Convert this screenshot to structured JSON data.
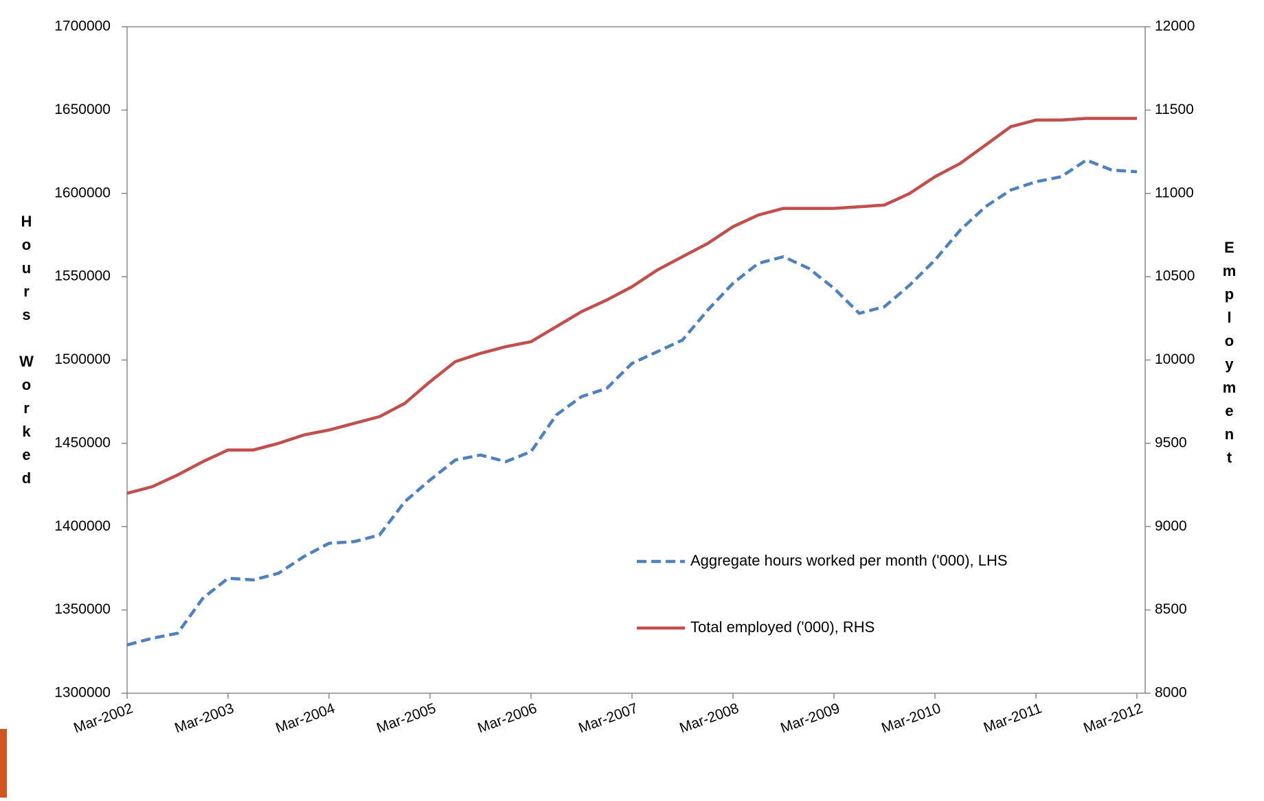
{
  "chart_data": {
    "type": "line",
    "y_label": "Hours Worked",
    "y2_label": "Employment",
    "categories": [
      "Mar-2002",
      null,
      null,
      null,
      "Mar-2003",
      null,
      null,
      null,
      "Mar-2004",
      null,
      null,
      null,
      "Mar-2005",
      null,
      null,
      null,
      "Mar-2006",
      null,
      null,
      null,
      "Mar-2007",
      null,
      null,
      null,
      "Mar-2008",
      null,
      null,
      null,
      "Mar-2009",
      null,
      null,
      null,
      "Mar-2010",
      null,
      null,
      null,
      "Mar-2011",
      null,
      null,
      null,
      "Mar-2012"
    ],
    "series": [
      {
        "name": "Aggregate hours worked per month  ('000), LHS",
        "color": "#4f81bd",
        "line_style": "dashed",
        "axis": "y",
        "values": [
          1329000,
          1333000,
          1336000,
          1357000,
          1369000,
          1368000,
          1372000,
          1382000,
          1390000,
          1391000,
          1395000,
          1415000,
          1428000,
          1440000,
          1443000,
          1439000,
          1445000,
          1467000,
          1478000,
          1483000,
          1498000,
          1505000,
          1512000,
          1530000,
          1546000,
          1558000,
          1562000,
          1555000,
          1543000,
          1528000,
          1532000,
          1545000,
          1560000,
          1578000,
          1592000,
          1602000,
          1607000,
          1610000,
          1620000,
          1614000,
          1613000
        ]
      },
      {
        "name": "Total employed  ('000), RHS",
        "color": "#c0504d",
        "line_style": "solid",
        "axis": "y2",
        "values": [
          9200,
          9240,
          9310,
          9390,
          9460,
          9460,
          9500,
          9550,
          9580,
          9620,
          9660,
          9740,
          9870,
          9990,
          10040,
          10080,
          10110,
          10200,
          10290,
          10360,
          10440,
          10540,
          10620,
          10700,
          10800,
          10870,
          10910,
          10910,
          10910,
          10920,
          10930,
          11000,
          11100,
          11180,
          11290,
          11400,
          11440,
          11440,
          11450,
          11450,
          11450
        ]
      }
    ],
    "ylim": [
      1300000,
      1700000
    ],
    "yticks": [
      1300000,
      1350000,
      1400000,
      1450000,
      1500000,
      1550000,
      1600000,
      1650000,
      1700000
    ],
    "y2lim": [
      8000,
      12000
    ],
    "y2ticks": [
      8000,
      8500,
      9000,
      9500,
      10000,
      10500,
      11000,
      11500,
      12000
    ],
    "grid": false
  }
}
